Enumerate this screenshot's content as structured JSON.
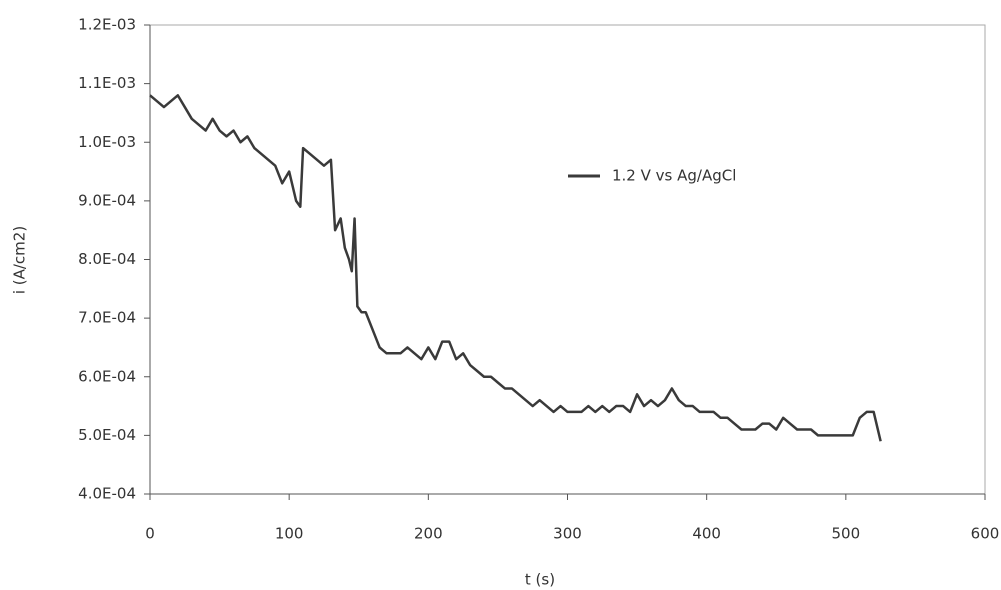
{
  "chart_data": {
    "type": "line",
    "x_label": "t (s)",
    "y_label": "i (A/cm2)",
    "x": [
      0,
      5,
      10,
      15,
      20,
      25,
      30,
      35,
      40,
      45,
      50,
      55,
      60,
      65,
      70,
      75,
      80,
      85,
      90,
      95,
      100,
      105,
      108,
      110,
      115,
      120,
      125,
      130,
      133,
      137,
      140,
      143,
      145,
      147,
      149,
      152,
      155,
      160,
      165,
      170,
      175,
      180,
      185,
      190,
      195,
      200,
      205,
      210,
      215,
      220,
      225,
      230,
      235,
      240,
      245,
      250,
      255,
      260,
      265,
      270,
      275,
      280,
      285,
      290,
      295,
      300,
      305,
      310,
      315,
      320,
      325,
      330,
      335,
      340,
      345,
      350,
      355,
      360,
      365,
      370,
      375,
      380,
      385,
      390,
      395,
      400,
      405,
      410,
      415,
      420,
      425,
      430,
      435,
      440,
      445,
      450,
      455,
      460,
      465,
      470,
      475,
      480,
      485,
      490,
      495,
      500,
      505,
      510,
      515,
      520,
      525
    ],
    "series": [
      {
        "name": "1.2 V vs Ag/AgCl",
        "color": "#3a3a3a",
        "values": [
          0.00108,
          0.00107,
          0.00106,
          0.00107,
          0.00108,
          0.00106,
          0.00104,
          0.00103,
          0.00102,
          0.00104,
          0.00102,
          0.00101,
          0.00102,
          0.001,
          0.00101,
          0.00099,
          0.00098,
          0.00097,
          0.00096,
          0.00093,
          0.00095,
          0.0009,
          0.00089,
          0.00099,
          0.00098,
          0.00097,
          0.00096,
          0.00097,
          0.00085,
          0.00087,
          0.00082,
          0.0008,
          0.00078,
          0.00087,
          0.00072,
          0.00071,
          0.00071,
          0.00068,
          0.00065,
          0.00064,
          0.00064,
          0.00064,
          0.00065,
          0.00064,
          0.00063,
          0.00065,
          0.00063,
          0.00066,
          0.00066,
          0.00063,
          0.00064,
          0.00062,
          0.00061,
          0.0006,
          0.0006,
          0.00059,
          0.00058,
          0.00058,
          0.00057,
          0.00056,
          0.00055,
          0.00056,
          0.00055,
          0.00054,
          0.00055,
          0.00054,
          0.00054,
          0.00054,
          0.00055,
          0.00054,
          0.00055,
          0.00054,
          0.00055,
          0.00055,
          0.00054,
          0.00057,
          0.00055,
          0.00056,
          0.00055,
          0.00056,
          0.00058,
          0.00056,
          0.00055,
          0.00055,
          0.00054,
          0.00054,
          0.00054,
          0.00053,
          0.00053,
          0.00052,
          0.00051,
          0.00051,
          0.00051,
          0.00052,
          0.00052,
          0.00051,
          0.00053,
          0.00052,
          0.00051,
          0.00051,
          0.00051,
          0.0005,
          0.0005,
          0.0005,
          0.0005,
          0.0005,
          0.0005,
          0.00053,
          0.00054,
          0.00054,
          0.00049
        ]
      }
    ],
    "xlim": [
      0,
      600
    ],
    "xticks": [
      0,
      100,
      200,
      300,
      400,
      500,
      600
    ],
    "ylim": [
      0.0004,
      0.0012
    ],
    "yticks": [
      {
        "value": 0.0004,
        "label": "4.0E-04"
      },
      {
        "value": 0.0005,
        "label": "5.0E-04"
      },
      {
        "value": 0.0006,
        "label": "6.0E-04"
      },
      {
        "value": 0.0007,
        "label": "7.0E-04"
      },
      {
        "value": 0.0008,
        "label": "8.0E-04"
      },
      {
        "value": 0.0009,
        "label": "9.0E-04"
      },
      {
        "value": 0.001,
        "label": "1.0E-03"
      },
      {
        "value": 0.0011,
        "label": "1.1E-03"
      },
      {
        "value": 0.0012,
        "label": "1.2E-03"
      }
    ],
    "grid": false
  }
}
